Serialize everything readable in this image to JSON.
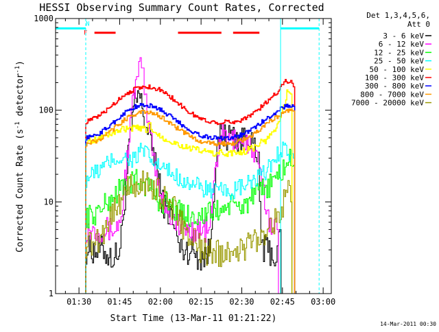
{
  "chart_data": {
    "type": "line",
    "title": "HESSI Observing Summary Count Rates, Corrected",
    "xlabel": "Start Time (13-Mar-11 01:21:22)",
    "ylabel": "Corrected Count Rate (s^-1 detector^-1)",
    "ylabel_parts": {
      "pre": "Corrected Count Rate (s",
      "sup1": "-1",
      "mid": " detector",
      "sup2": "-1",
      "post": ")"
    },
    "yscale": "log",
    "ylim": [
      1,
      1000
    ],
    "xlim": [
      81.37,
      183
    ],
    "x_unit": "minutes after 00:00 UT on 13-Mar-11",
    "x_ticks": [
      {
        "label": "01:30",
        "value": 90
      },
      {
        "label": "01:45",
        "value": 105
      },
      {
        "label": "02:00",
        "value": 120
      },
      {
        "label": "02:15",
        "value": 135
      },
      {
        "label": "02:30",
        "value": 150
      },
      {
        "label": "02:45",
        "value": 165
      },
      {
        "label": "03:00",
        "value": 180
      }
    ],
    "y_ticks": [
      {
        "label": "1",
        "value": 1
      },
      {
        "label": "10",
        "value": 10
      },
      {
        "label": "100",
        "value": 100
      },
      {
        "label": "1000",
        "value": 1000
      }
    ],
    "legend_header": [
      "Det 1,3,4,5,6,",
      "Att 0"
    ],
    "legend_position": "right",
    "series": [
      {
        "name": "3 - 6 keV",
        "color": "#000000",
        "x": [
          92,
          92.5,
          95,
          97,
          99,
          101,
          103,
          105,
          106,
          108,
          110,
          112,
          114,
          116,
          118,
          120,
          122,
          124,
          125,
          126,
          127,
          128,
          130,
          132,
          134,
          136,
          138,
          140,
          142,
          144,
          146,
          148,
          150,
          152,
          153,
          154,
          155,
          156,
          157,
          158,
          160,
          162,
          163,
          164,
          164.5
        ],
        "y": [
          0,
          3,
          3,
          3,
          3,
          2.5,
          2.5,
          3,
          6,
          30,
          100,
          150,
          80,
          50,
          30,
          12,
          8,
          7,
          5,
          4,
          3,
          3,
          3,
          3,
          2.5,
          2.5,
          3,
          20,
          55,
          50,
          55,
          50,
          45,
          60,
          50,
          40,
          30,
          25,
          4,
          3,
          3,
          2.5,
          2.5,
          5,
          0
        ]
      },
      {
        "name": "6 - 12 keV",
        "color": "#ff00ff",
        "x": [
          92,
          92.5,
          95,
          97,
          99,
          101,
          103,
          105,
          106,
          108,
          110,
          112,
          113,
          114,
          115,
          116,
          117,
          118,
          120,
          122,
          124,
          126,
          128,
          130,
          132,
          134,
          136,
          138,
          140,
          142,
          144,
          146,
          148,
          150,
          152,
          154,
          156,
          158,
          160,
          162,
          163,
          163.5
        ],
        "y": [
          0,
          5,
          5,
          5,
          5,
          5,
          5,
          6,
          10,
          40,
          150,
          250,
          350,
          150,
          90,
          55,
          40,
          25,
          12,
          9,
          7,
          6,
          5,
          5,
          5,
          5,
          5,
          5,
          20,
          55,
          50,
          45,
          50,
          45,
          45,
          35,
          25,
          12,
          6,
          6,
          5,
          0
        ]
      },
      {
        "name": "12 - 25 keV",
        "color": "#00ff00",
        "x": [
          92,
          92.5,
          95,
          97,
          99,
          101,
          103,
          105,
          107,
          109,
          111,
          113,
          115,
          117,
          118,
          120,
          122,
          124,
          126,
          128,
          130,
          132,
          134,
          136,
          138,
          140,
          142,
          144,
          146,
          148,
          150,
          152,
          154,
          156,
          158,
          160,
          162,
          164,
          166,
          168,
          169,
          169.5
        ],
        "y": [
          0,
          7,
          7,
          8,
          9,
          10,
          12,
          14,
          16,
          16,
          17,
          16,
          15,
          14,
          11,
          10,
          10,
          9,
          8,
          7.5,
          7,
          7,
          7,
          7,
          7.5,
          8,
          8,
          9,
          9,
          9,
          9,
          10,
          11,
          12,
          14,
          15,
          18,
          20,
          25,
          30,
          25,
          0
        ]
      },
      {
        "name": "25 - 50 keV",
        "color": "#00ffff",
        "x": [
          92,
          92.5,
          95,
          97,
          99,
          101,
          103,
          105,
          107,
          109,
          111,
          113,
          115,
          117,
          119,
          121,
          123,
          125,
          127,
          129,
          131,
          133,
          135,
          137,
          139,
          141,
          143,
          145,
          147,
          149,
          151,
          153,
          155,
          157,
          159,
          161,
          163,
          165,
          167,
          169,
          169.5
        ],
        "y": [
          0,
          18,
          20,
          22,
          24,
          27,
          29,
          30,
          30,
          29,
          30,
          38,
          32,
          27,
          25,
          23,
          21,
          20,
          18,
          17,
          16,
          15,
          14,
          14,
          13,
          13,
          13,
          13,
          13,
          14,
          15,
          16,
          17,
          19,
          22,
          27,
          33,
          40,
          35,
          30,
          0
        ]
      },
      {
        "name": "50 - 100 keV",
        "color": "#ffff00",
        "x": [
          92,
          92.5,
          95,
          97,
          99,
          101,
          103,
          105,
          107,
          109,
          111,
          113,
          115,
          116,
          117,
          119,
          121,
          123,
          125,
          127,
          129,
          131,
          133,
          135,
          137,
          139,
          141,
          143,
          145,
          147,
          149,
          151,
          153,
          155,
          157,
          159,
          161,
          163,
          165,
          167,
          168,
          168.5
        ],
        "y": [
          0,
          45,
          47,
          50,
          52,
          55,
          58,
          60,
          62,
          63,
          63,
          62,
          62,
          70,
          60,
          55,
          50,
          47,
          44,
          42,
          40,
          38,
          37,
          36,
          35,
          34,
          34,
          34,
          34,
          34,
          35,
          36,
          38,
          40,
          44,
          48,
          55,
          70,
          100,
          170,
          150,
          0
        ]
      },
      {
        "name": "100 - 300 keV",
        "color": "#ff0000",
        "x": [
          92,
          92.5,
          95,
          97,
          99,
          101,
          103,
          105,
          107,
          109,
          111,
          113,
          115,
          117,
          119,
          121,
          123,
          125,
          127,
          129,
          131,
          133,
          135,
          137,
          139,
          141,
          143,
          145,
          147,
          149,
          151,
          153,
          155,
          157,
          159,
          161,
          163,
          165,
          166,
          168,
          169,
          169.5
        ],
        "y": [
          0,
          75,
          80,
          85,
          95,
          105,
          120,
          135,
          150,
          162,
          172,
          178,
          180,
          178,
          170,
          158,
          145,
          130,
          115,
          103,
          93,
          86,
          80,
          76,
          75,
          74,
          74,
          74,
          75,
          77,
          82,
          88,
          96,
          108,
          122,
          140,
          160,
          190,
          215,
          200,
          180,
          0
        ]
      },
      {
        "name": "300 - 800 keV",
        "color": "#0000ff",
        "x": [
          92,
          92.5,
          95,
          97,
          99,
          101,
          103,
          105,
          107,
          109,
          111,
          113,
          115,
          117,
          119,
          121,
          123,
          125,
          127,
          129,
          131,
          133,
          135,
          137,
          139,
          141,
          143,
          145,
          147,
          149,
          151,
          153,
          155,
          157,
          159,
          161,
          163,
          165,
          167,
          169,
          169.5
        ],
        "y": [
          0,
          50,
          52,
          55,
          60,
          67,
          75,
          85,
          95,
          103,
          110,
          113,
          113,
          110,
          105,
          97,
          88,
          80,
          72,
          66,
          60,
          56,
          53,
          51,
          50,
          50,
          50,
          50,
          51,
          53,
          56,
          60,
          66,
          73,
          80,
          88,
          98,
          108,
          112,
          110,
          0
        ]
      },
      {
        "name": "800 - 7000 keV",
        "color": "#ff9900",
        "x": [
          92,
          92.5,
          95,
          97,
          99,
          101,
          103,
          105,
          107,
          109,
          111,
          113,
          115,
          117,
          119,
          121,
          123,
          125,
          127,
          129,
          131,
          133,
          135,
          137,
          139,
          141,
          143,
          145,
          147,
          149,
          151,
          153,
          155,
          157,
          159,
          161,
          163,
          165,
          167,
          169,
          169.5
        ],
        "y": [
          0,
          43,
          45,
          47,
          51,
          57,
          64,
          72,
          80,
          87,
          92,
          95,
          95,
          93,
          88,
          82,
          74,
          67,
          61,
          56,
          52,
          48,
          46,
          44,
          43,
          43,
          43,
          43,
          44,
          46,
          48,
          52,
          57,
          63,
          70,
          77,
          85,
          95,
          100,
          98,
          0
        ]
      },
      {
        "name": "7000 - 20000 keV",
        "color": "#999900",
        "x": [
          92,
          92.5,
          95,
          97,
          99,
          101,
          103,
          105,
          107,
          109,
          111,
          113,
          115,
          117,
          119,
          121,
          123,
          125,
          127,
          129,
          131,
          133,
          135,
          137,
          139,
          141,
          143,
          145,
          147,
          149,
          151,
          153,
          155,
          157,
          159,
          161,
          163,
          165,
          167,
          168,
          168.5
        ],
        "y": [
          0,
          3.5,
          3.5,
          4,
          5,
          6.5,
          8.5,
          10.5,
          12.5,
          14.5,
          15.5,
          16,
          15.5,
          14.5,
          13,
          11,
          9.5,
          8,
          6.5,
          5,
          4,
          3.5,
          3,
          2.8,
          2.8,
          2.8,
          2.8,
          2.8,
          3,
          3,
          3.2,
          3.5,
          4,
          4.5,
          5,
          6,
          7,
          9,
          12,
          10,
          0
        ]
      }
    ],
    "attenuator_line": {
      "color": "#00ffff",
      "x": [
        81.37,
        92.5,
        164.3,
        178.5
      ],
      "y": 780
    },
    "flag_marks": {
      "labels": [
        {
          "text": "N",
          "color": "#00ffff",
          "x": 93.2,
          "y": 880
        },
        {
          "text": "F",
          "color": "#ff0000",
          "x": 92.4,
          "y": 700
        }
      ],
      "f_segments": {
        "color": "#ff0000",
        "y": 700,
        "ranges": [
          [
            95.7,
            103.5
          ],
          [
            126.5,
            142.5
          ],
          [
            146.8,
            156.5
          ]
        ]
      }
    },
    "vertical_markers": {
      "solid": {
        "color": "#00ffff",
        "x": [
          164.3
        ]
      },
      "dashed": {
        "color": "#00ffff",
        "x": [
          92.5,
          178.5
        ]
      }
    },
    "footer_date": "14-Mar-2011 00:30"
  }
}
